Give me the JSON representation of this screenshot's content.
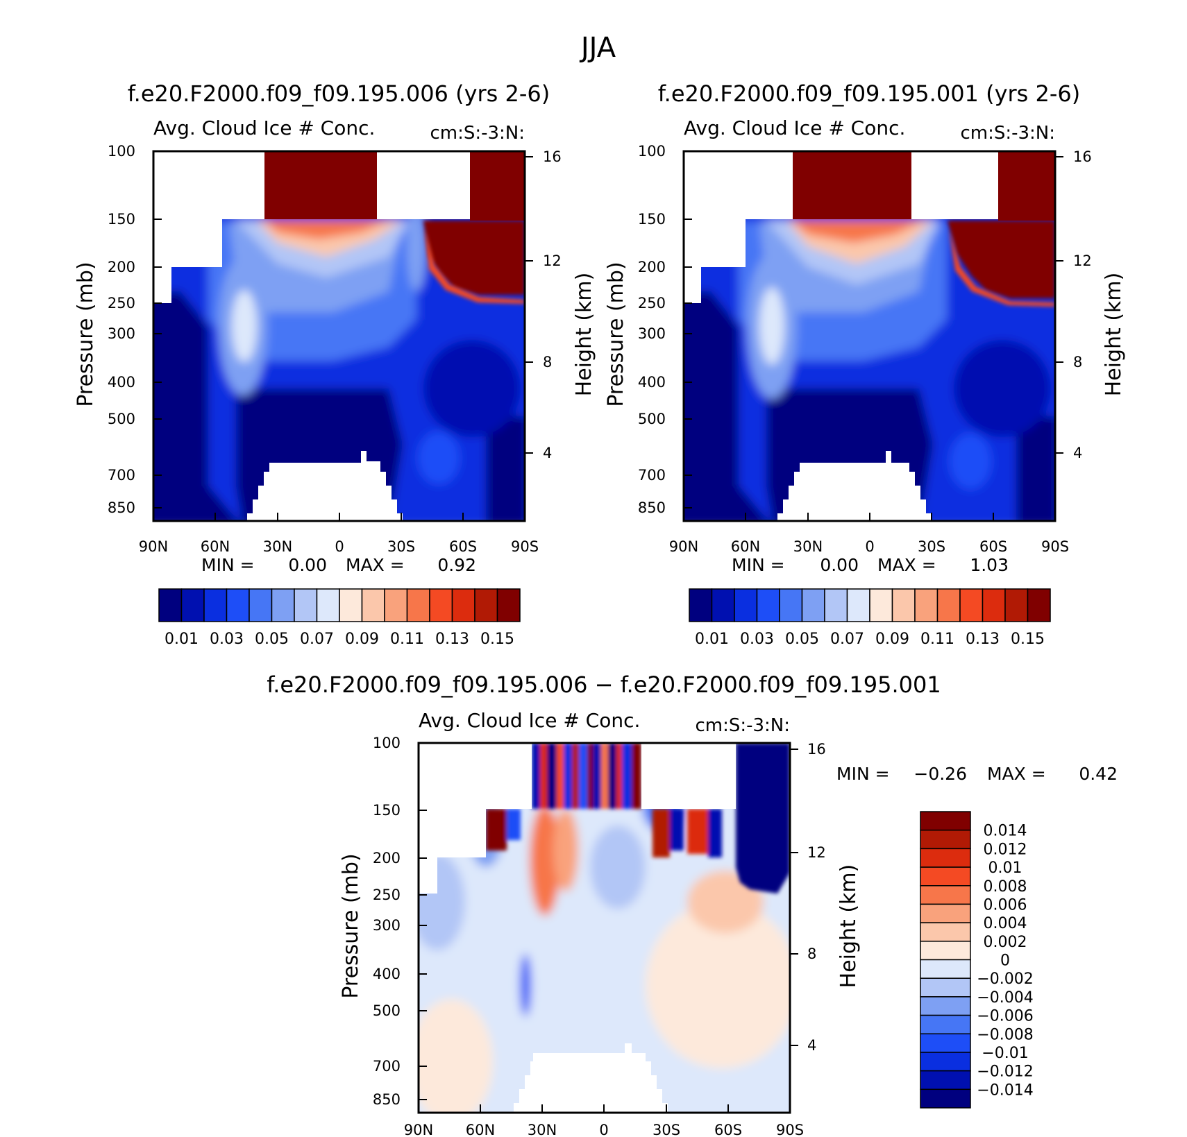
{
  "figure": {
    "title": "JJA"
  },
  "chart_data": [
    {
      "type": "heatmap",
      "title": "f.e20.F2000.f09_f09.195.006 (yrs 2-6)",
      "subtitle": "Avg. Cloud Ice # Conc.",
      "units": "cm:S:-3:N:",
      "ylabel": "Pressure (mb)",
      "y2label": "Height (km)",
      "x_ticks": [
        "90N",
        "60N",
        "30N",
        "0",
        "30S",
        "60S",
        "90S"
      ],
      "y_ticks": [
        "100",
        "150",
        "200",
        "250",
        "300",
        "400",
        "500",
        "700",
        "850"
      ],
      "y2_ticks": [
        "16",
        "12",
        "8",
        "4"
      ],
      "stats": {
        "min_label": "MIN =",
        "min": "0.00",
        "max_label": "MAX =",
        "max": "0.92"
      },
      "colorbar": {
        "labels": [
          "0.01",
          "0.03",
          "0.05",
          "0.07",
          "0.09",
          "0.11",
          "0.13",
          "0.15"
        ],
        "colors": [
          "#00007f",
          "#0010b0",
          "#0a2fe0",
          "#1e4ef7",
          "#4676f5",
          "#7ea0f3",
          "#b2c6f6",
          "#dde8fb",
          "#fde9db",
          "#fbc7ab",
          "#f9a27c",
          "#f7764a",
          "#f44a23",
          "#dc2c0e",
          "#b11a05",
          "#800000"
        ]
      },
      "regions": [
        "tropopause maximum band near 30N–0",
        "polar maximum 60S–90S"
      ]
    },
    {
      "type": "heatmap",
      "title": "f.e20.F2000.f09_f09.195.001 (yrs 2-6)",
      "subtitle": "Avg. Cloud Ice # Conc.",
      "units": "cm:S:-3:N:",
      "ylabel": "Pressure (mb)",
      "y2label": "Height (km)",
      "x_ticks": [
        "90N",
        "60N",
        "30N",
        "0",
        "30S",
        "60S",
        "90S"
      ],
      "y_ticks": [
        "100",
        "150",
        "200",
        "250",
        "300",
        "400",
        "500",
        "700",
        "850"
      ],
      "y2_ticks": [
        "16",
        "12",
        "8",
        "4"
      ],
      "stats": {
        "min_label": "MIN =",
        "min": "0.00",
        "max_label": "MAX =",
        "max": "1.03"
      },
      "colorbar": {
        "labels": [
          "0.01",
          "0.03",
          "0.05",
          "0.07",
          "0.09",
          "0.11",
          "0.13",
          "0.15"
        ],
        "colors": [
          "#00007f",
          "#0010b0",
          "#0a2fe0",
          "#1e4ef7",
          "#4676f5",
          "#7ea0f3",
          "#b2c6f6",
          "#dde8fb",
          "#fde9db",
          "#fbc7ab",
          "#f9a27c",
          "#f7764a",
          "#f44a23",
          "#dc2c0e",
          "#b11a05",
          "#800000"
        ]
      }
    },
    {
      "type": "heatmap",
      "title": "f.e20.F2000.f09_f09.195.006 − f.e20.F2000.f09_f09.195.001",
      "subtitle": "Avg. Cloud Ice # Conc.",
      "units": "cm:S:-3:N:",
      "ylabel": "Pressure (mb)",
      "y2label": "Height (km)",
      "x_ticks": [
        "90N",
        "60N",
        "30N",
        "0",
        "30S",
        "60S",
        "90S"
      ],
      "y_ticks": [
        "100",
        "150",
        "200",
        "250",
        "300",
        "400",
        "500",
        "700",
        "850"
      ],
      "y2_ticks": [
        "16",
        "12",
        "8",
        "4"
      ],
      "stats": {
        "min_label": "MIN =",
        "min": "−0.26",
        "max_label": "MAX =",
        "max": "0.42"
      },
      "colorbar": {
        "labels": [
          "0.014",
          "0.012",
          "0.01",
          "0.008",
          "0.006",
          "0.004",
          "0.002",
          "0",
          "−0.002",
          "−0.004",
          "−0.006",
          "−0.008",
          "−0.01",
          "−0.012",
          "−0.014"
        ],
        "colors": [
          "#800000",
          "#b11a05",
          "#dc2c0e",
          "#f44a23",
          "#f7764a",
          "#f9a27c",
          "#fbc7ab",
          "#fde9db",
          "#dde8fb",
          "#b2c6f6",
          "#7ea0f3",
          "#4676f5",
          "#1e4ef7",
          "#0a2fe0",
          "#0010b0",
          "#00007f"
        ]
      }
    }
  ]
}
